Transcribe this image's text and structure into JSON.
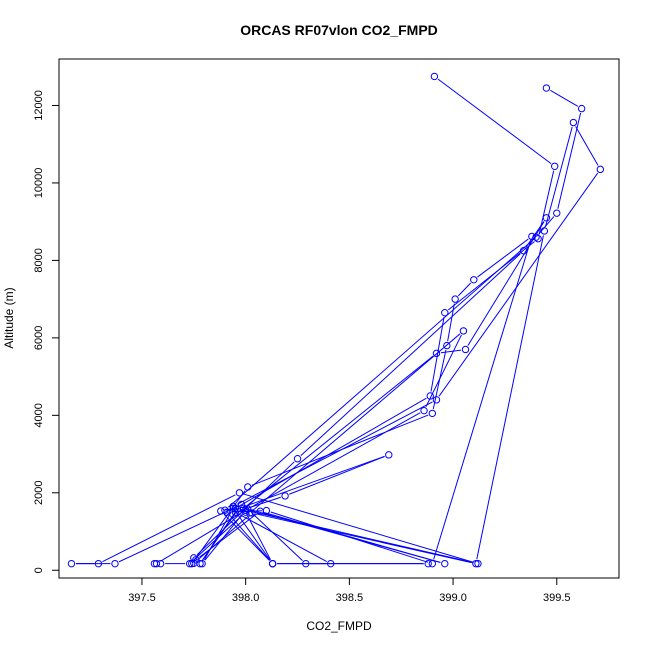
{
  "chart_data": {
    "type": "scatter",
    "mode": "lines+points",
    "title": "ORCAS RF07vlon CO2_FMPD",
    "xlabel": "CO2_FMPD",
    "ylabel": "Altitude (m)",
    "xlim": [
      397.1,
      399.8
    ],
    "ylim": [
      -200,
      13200
    ],
    "xticks": [
      397.5,
      398.0,
      398.5,
      399.0,
      399.5
    ],
    "xtick_labels": [
      "397.5",
      "398.0",
      "398.5",
      "399.0",
      "399.5"
    ],
    "yticks": [
      0,
      2000,
      4000,
      6000,
      8000,
      10000,
      12000
    ],
    "ytick_labels": [
      "0",
      "2000",
      "4000",
      "6000",
      "8000",
      "10000",
      "12000"
    ],
    "color": "#0000ff",
    "grid": false,
    "series": [
      {
        "x": [
          398.91,
          399.49,
          399.41,
          398.96,
          398.89,
          397.95,
          397.88,
          398.13,
          397.91,
          398.1,
          398.9,
          399.38,
          399.1,
          399.01,
          398.97,
          398.9,
          398.01,
          397.74,
          397.75,
          398.03,
          399.11,
          399.44,
          399.58,
          399.71,
          398.92,
          397.94,
          398.02,
          399.05,
          398.86,
          398.0,
          397.57,
          397.56,
          397.59,
          397.73,
          398.0,
          398.13,
          398.88,
          398.13,
          397.94,
          397.79,
          398.0,
          399.12,
          397.97,
          397.29,
          397.16,
          397.37,
          397.98,
          397.78,
          397.96,
          398.69,
          398.19,
          397.95,
          398.41,
          398.29,
          398.01,
          398.96,
          398.07,
          397.76,
          397.75,
          398.25,
          399.34,
          399.45,
          399.06,
          398.92,
          397.99,
          397.9,
          399.4,
          399.5,
          399.62,
          399.45
        ],
        "y": [
          12750,
          10430,
          8560,
          6650,
          4500,
          1600,
          1530,
          170,
          1500,
          1540,
          170,
          8620,
          7500,
          7000,
          5800,
          4050,
          2150,
          170,
          180,
          1480,
          170,
          8760,
          11560,
          10350,
          4400,
          1650,
          1480,
          6180,
          4120,
          1550,
          170,
          170,
          170,
          170,
          1500,
          170,
          170,
          170,
          1600,
          170,
          1550,
          170,
          2000,
          170,
          170,
          170,
          1700,
          170,
          1580,
          2980,
          1920,
          1500,
          170,
          170,
          1580,
          170,
          1520,
          270,
          320,
          2880,
          8250,
          9100,
          5700,
          5600,
          1600,
          1550,
          8600,
          9220,
          11920,
          12450
        ]
      }
    ]
  }
}
